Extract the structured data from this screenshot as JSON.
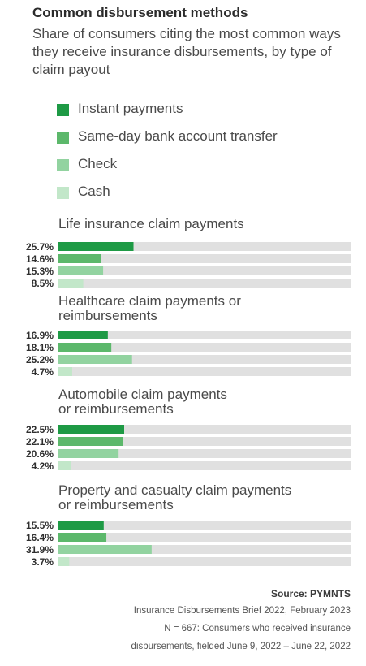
{
  "title": "Common disbursement methods",
  "subtitle": "Share of consumers citing the most common ways they receive insurance disbursements, by type of claim payout",
  "colors": {
    "instant": "#1e9a45",
    "same_day": "#5cb86b",
    "check": "#92d3a0",
    "cash": "#c2e7c9",
    "track": "#e0e0e0"
  },
  "chart_data": {
    "type": "bar",
    "orientation": "horizontal",
    "xlim": [
      0,
      100
    ],
    "series": [
      {
        "name": "Instant payments"
      },
      {
        "name": "Same-day bank account transfer"
      },
      {
        "name": "Check"
      },
      {
        "name": "Cash"
      }
    ],
    "groups": [
      {
        "title": "Life insurance claim payments",
        "values": [
          25.7,
          14.6,
          15.3,
          8.5
        ],
        "labels": [
          "25.7%",
          "14.6%",
          "15.3%",
          "8.5%"
        ]
      },
      {
        "title": "Healthcare claim payments or reimbursements",
        "values": [
          16.9,
          18.1,
          25.2,
          4.7
        ],
        "labels": [
          "16.9%",
          "18.1%",
          "25.2%",
          "4.7%"
        ]
      },
      {
        "title": "Automobile claim payments or reimbursements",
        "values": [
          22.5,
          22.1,
          20.6,
          4.2
        ],
        "labels": [
          "22.5%",
          "22.1%",
          "20.6%",
          "4.2%"
        ]
      },
      {
        "title": "Property and casualty claim payments or reimbursements",
        "values": [
          15.5,
          16.4,
          31.9,
          3.7
        ],
        "labels": [
          "15.5%",
          "16.4%",
          "31.9%",
          "3.7%"
        ]
      }
    ]
  },
  "footer": {
    "source": "Source: PYMNTS",
    "line1": "Insurance Disbursements Brief 2022, February 2023",
    "line2": "N = 667: Consumers who received insurance",
    "line3": "disbursements, fielded June 9, 2022 – June 22, 2022"
  }
}
